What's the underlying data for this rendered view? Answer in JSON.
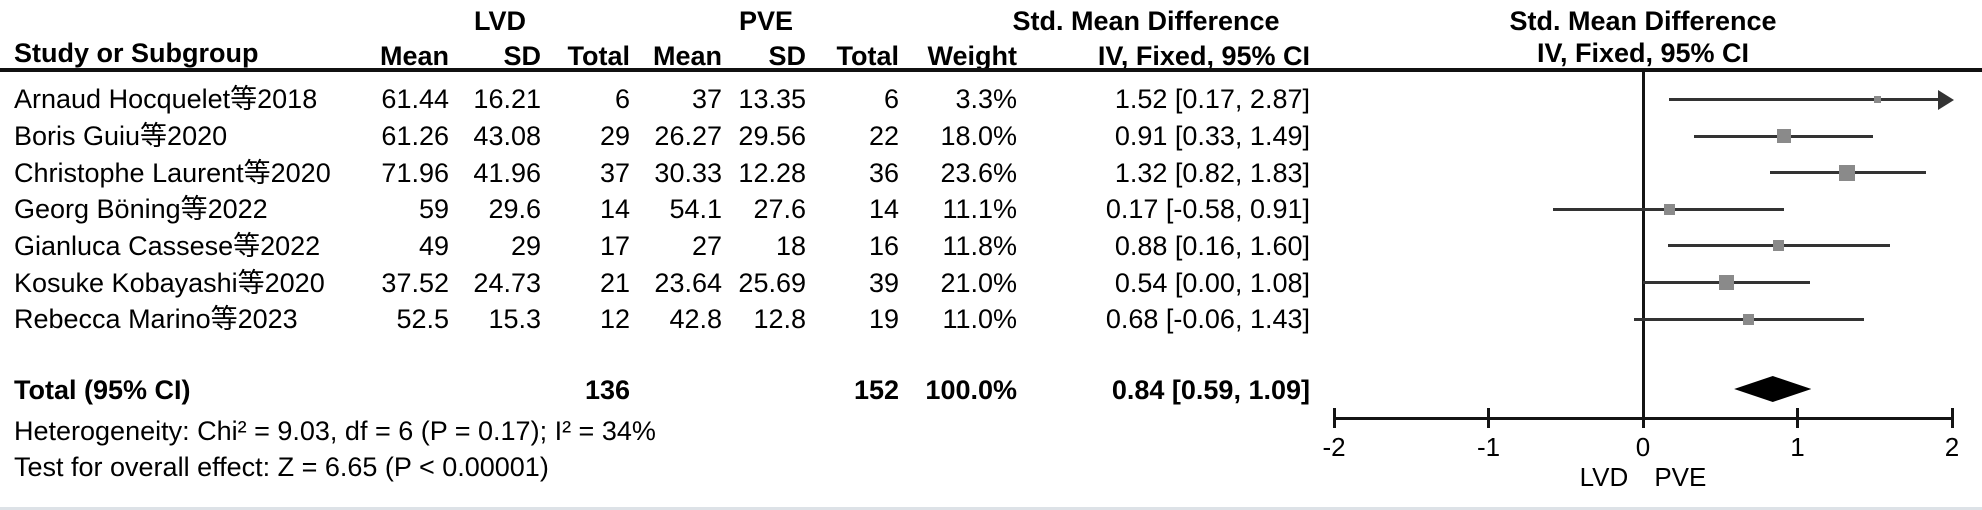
{
  "header": {
    "group1": "LVD",
    "group2": "PVE",
    "smd_label": "Std. Mean Difference",
    "col_study": "Study or Subgroup",
    "col_mean": "Mean",
    "col_sd": "SD",
    "col_total": "Total",
    "col_weight": "Weight",
    "col_ci": "IV, Fixed, 95% CI"
  },
  "table": {
    "rows": [
      {
        "study": "Arnaud Hocquelet等2018",
        "lvd_mean": "61.44",
        "lvd_sd": "16.21",
        "lvd_total": "6",
        "pve_mean": "37",
        "pve_sd": "13.35",
        "pve_total": "6",
        "weight": "3.3%",
        "smd": "1.52 [0.17, 2.87]"
      },
      {
        "study": "Boris Guiu等2020",
        "lvd_mean": "61.26",
        "lvd_sd": "43.08",
        "lvd_total": "29",
        "pve_mean": "26.27",
        "pve_sd": "29.56",
        "pve_total": "22",
        "weight": "18.0%",
        "smd": "0.91 [0.33, 1.49]"
      },
      {
        "study": "Christophe Laurent等2020",
        "lvd_mean": "71.96",
        "lvd_sd": "41.96",
        "lvd_total": "37",
        "pve_mean": "30.33",
        "pve_sd": "12.28",
        "pve_total": "36",
        "weight": "23.6%",
        "smd": "1.32 [0.82, 1.83]"
      },
      {
        "study": "Georg Böning等2022",
        "lvd_mean": "59",
        "lvd_sd": "29.6",
        "lvd_total": "14",
        "pve_mean": "54.1",
        "pve_sd": "27.6",
        "pve_total": "14",
        "weight": "11.1%",
        "smd": "0.17 [-0.58, 0.91]"
      },
      {
        "study": "Gianluca Cassese等2022",
        "lvd_mean": "49",
        "lvd_sd": "29",
        "lvd_total": "17",
        "pve_mean": "27",
        "pve_sd": "18",
        "pve_total": "16",
        "weight": "11.8%",
        "smd": "0.88 [0.16, 1.60]"
      },
      {
        "study": "Kosuke Kobayashi等2020",
        "lvd_mean": "37.52",
        "lvd_sd": "24.73",
        "lvd_total": "21",
        "pve_mean": "23.64",
        "pve_sd": "25.69",
        "pve_total": "39",
        "weight": "21.0%",
        "smd": "0.54 [0.00, 1.08]"
      },
      {
        "study": "Rebecca Marino等2023",
        "lvd_mean": "52.5",
        "lvd_sd": "15.3",
        "lvd_total": "12",
        "pve_mean": "42.8",
        "pve_sd": "12.8",
        "pve_total": "19",
        "weight": "11.0%",
        "smd": "0.68 [-0.06, 1.43]"
      }
    ],
    "total": {
      "label": "Total (95% CI)",
      "lvd_total": "136",
      "pve_total": "152",
      "weight": "100.0%",
      "smd": "0.84 [0.59, 1.09]"
    },
    "heterogeneity": "Heterogeneity: Chi² = 9.03, df = 6 (P = 0.17); I² = 34%",
    "overall_effect": "Test for overall effect: Z = 6.65 (P < 0.00001)"
  },
  "chart_data": {
    "type": "forest",
    "title": "Std. Mean Difference",
    "method": "IV, Fixed, 95% CI",
    "x_axis": {
      "min": -2,
      "max": 2,
      "ticks": [
        -2,
        -1,
        0,
        1,
        2
      ],
      "left_label": "LVD",
      "right_label": "PVE"
    },
    "studies": [
      {
        "name": "Arnaud Hocquelet等2018",
        "effect": 1.52,
        "ci_low": 0.17,
        "ci_high": 2.87,
        "weight_pct": 3.3
      },
      {
        "name": "Boris Guiu等2020",
        "effect": 0.91,
        "ci_low": 0.33,
        "ci_high": 1.49,
        "weight_pct": 18.0
      },
      {
        "name": "Christophe Laurent等2020",
        "effect": 1.32,
        "ci_low": 0.82,
        "ci_high": 1.83,
        "weight_pct": 23.6
      },
      {
        "name": "Georg Böning等2022",
        "effect": 0.17,
        "ci_low": -0.58,
        "ci_high": 0.91,
        "weight_pct": 11.1
      },
      {
        "name": "Gianluca Cassese等2022",
        "effect": 0.88,
        "ci_low": 0.16,
        "ci_high": 1.6,
        "weight_pct": 11.8
      },
      {
        "name": "Kosuke Kobayashi等2020",
        "effect": 0.54,
        "ci_low": 0.0,
        "ci_high": 1.08,
        "weight_pct": 21.0
      },
      {
        "name": "Rebecca Marino等2023",
        "effect": 0.68,
        "ci_low": -0.06,
        "ci_high": 1.43,
        "weight_pct": 11.0
      }
    ],
    "total": {
      "effect": 0.84,
      "ci_low": 0.59,
      "ci_high": 1.09,
      "weight_pct": 100.0
    }
  },
  "colors": {
    "square": "#8a8a8a",
    "ci_line": "#333333",
    "diamond": "#000000",
    "axis": "#141414"
  }
}
